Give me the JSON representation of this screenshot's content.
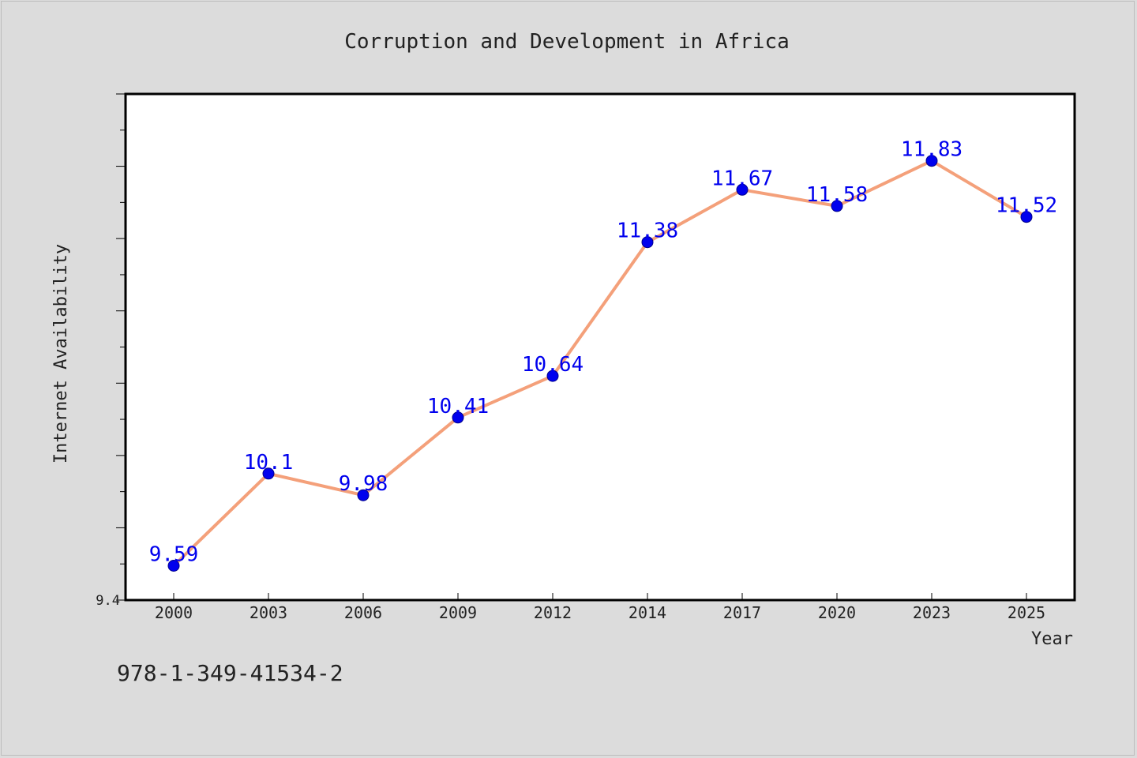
{
  "chart_data": {
    "type": "line",
    "title": "Corruption and Development in Africa",
    "xlabel": "Year",
    "ylabel": "Internet Availability",
    "categories": [
      "2000",
      "2003",
      "2006",
      "2009",
      "2012",
      "2014",
      "2017",
      "2020",
      "2023",
      "2025"
    ],
    "series": [
      {
        "values": [
          9.59,
          10.1,
          9.98,
          10.41,
          10.64,
          11.38,
          11.67,
          11.58,
          11.83,
          11.52
        ],
        "labels": [
          "9.59",
          "10.1",
          "9.98",
          "10.41",
          "10.64",
          "11.38",
          "11.67",
          "11.58",
          "11.83",
          "11.52"
        ]
      }
    ],
    "ytick_labels": [
      "9.4"
    ],
    "ylim": [
      9.4,
      12.2
    ],
    "grid": false,
    "legend": "none",
    "colors": {
      "background": "#dcdcdc",
      "plot_background": "#ffffff",
      "line": "#f4a07a",
      "marker": "#0000ee",
      "data_label": "#0000ee",
      "text": "#222222"
    }
  },
  "footer": {
    "isbn": "978-1-349-41534-2"
  }
}
